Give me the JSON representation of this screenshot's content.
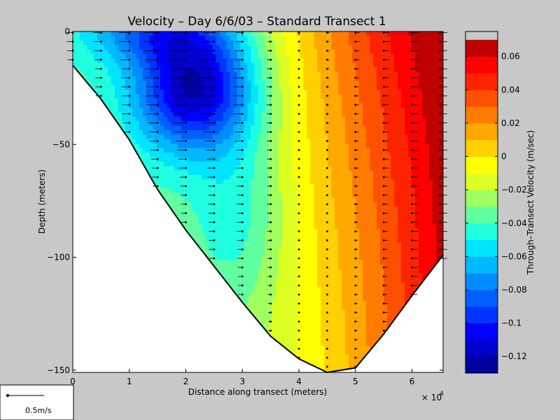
{
  "chart_data": {
    "type": "heatmap",
    "title": "Velocity – Day 6/6/03 – Standard Transect 1",
    "xlabel": "Distance along transect (meters)",
    "ylabel": "Depth (meters)",
    "x_exponent_label": "× 10",
    "x_exponent_power": "4",
    "xlim": [
      0,
      65500
    ],
    "ylim": [
      -151,
      0
    ],
    "x_ticks": [
      0,
      10000,
      20000,
      30000,
      40000,
      50000,
      60000
    ],
    "x_tick_labels": [
      "0",
      "1",
      "2",
      "3",
      "4",
      "5",
      "6"
    ],
    "y_ticks": [
      0,
      -50,
      -100,
      -150
    ],
    "y_tick_labels": [
      "0",
      "−50",
      "−100",
      "−150"
    ],
    "colorbar": {
      "label": "Through–Transect Velocity (m/sec)",
      "min": -0.13,
      "max": 0.075,
      "step": 0.01,
      "ticks": [
        0.06,
        0.04,
        0.02,
        0,
        -0.02,
        -0.04,
        -0.06,
        -0.08,
        -0.1,
        -0.12
      ],
      "tick_labels": [
        "0.06",
        "0.04",
        "0.02",
        "0",
        "−0.02",
        "−0.04",
        "−0.06",
        "−0.08",
        "−0.1",
        "−0.12"
      ],
      "colors": [
        "#00009f",
        "#0000cf",
        "#0000ff",
        "#0034ff",
        "#0060ff",
        "#008cff",
        "#00b8ff",
        "#00e4ff",
        "#20ffe0",
        "#60ffa0",
        "#a0ff60",
        "#dcff24",
        "#ffff00",
        "#ffd000",
        "#ffa800",
        "#ff7c00",
        "#ff5000",
        "#ff2400",
        "#ff0000",
        "#bf0000"
      ]
    },
    "bottom_profile": [
      [
        0,
        -15
      ],
      [
        5000,
        -30
      ],
      [
        10000,
        -48
      ],
      [
        15000,
        -70
      ],
      [
        20000,
        -88
      ],
      [
        25000,
        -104
      ],
      [
        30000,
        -120
      ],
      [
        35000,
        -135
      ],
      [
        40000,
        -145
      ],
      [
        45000,
        -151
      ],
      [
        50000,
        -149
      ],
      [
        55000,
        -134
      ],
      [
        60000,
        -117
      ],
      [
        65500,
        -99
      ]
    ],
    "station_x": [
      0,
      5000,
      10000,
      15000,
      20000,
      25000,
      30000,
      35000,
      40000,
      45000,
      50000,
      55000,
      60000,
      65000
    ],
    "velocity_field": {
      "description_levels": "contour-filled through-transect velocity",
      "surface_core_min": -0.12,
      "shore_max": 0.07
    },
    "scale_arrow_label": "0.5m/s"
  }
}
